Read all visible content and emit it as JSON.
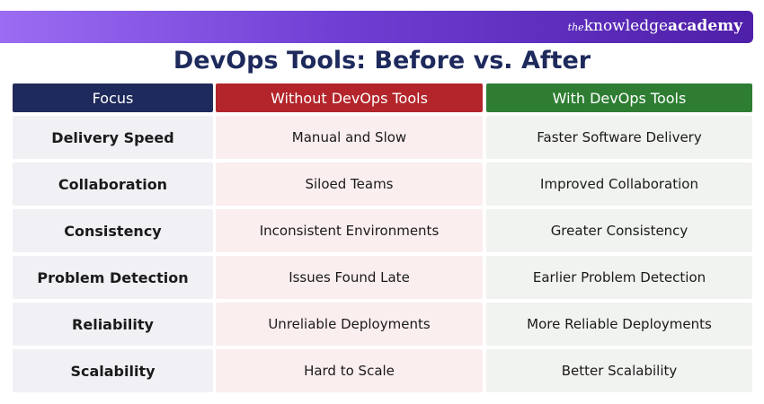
{
  "banner": {
    "logo": {
      "prefix": "the",
      "name": "knowledge",
      "suffix": "academy"
    }
  },
  "title": "DevOps Tools: Before vs. After",
  "table": {
    "columns": [
      "Focus",
      "Without DevOps Tools",
      "With DevOps Tools"
    ],
    "rows": [
      [
        "Delivery Speed",
        "Manual and Slow",
        "Faster Software Delivery"
      ],
      [
        "Collaboration",
        "Siloed Teams",
        "Improved Collaboration"
      ],
      [
        "Consistency",
        "Inconsistent Environments",
        "Greater Consistency"
      ],
      [
        "Problem Detection",
        "Issues Found Late",
        "Earlier Problem Detection"
      ],
      [
        "Reliability",
        "Unreliable Deployments",
        "More Reliable Deployments"
      ],
      [
        "Scalability",
        "Hard to Scale",
        "Better Scalability"
      ]
    ]
  }
}
